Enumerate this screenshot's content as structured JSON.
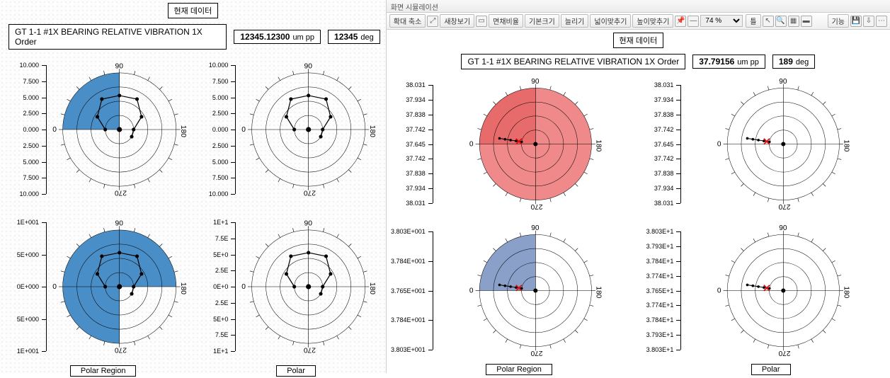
{
  "left": {
    "current_data_label": "현재 데이터",
    "title": "GT 1-1 #1X BEARING RELATIVE VIBRATION 1X Order",
    "amp_value": "12345.12300",
    "amp_unit": "um pp",
    "phase_value": "12345",
    "phase_unit": "deg",
    "captions": {
      "left": "Polar Region",
      "right": "Polar"
    },
    "polar": {
      "deg_labels": [
        "0",
        "90",
        "180",
        "270"
      ],
      "ring_count": 4,
      "tick_count": 24,
      "points_angles_deg": [
        180,
        150,
        120,
        90,
        60,
        30,
        0,
        330
      ],
      "points_radii": [
        0.25,
        0.45,
        0.62,
        0.6,
        0.62,
        0.45,
        0.25,
        0.25
      ],
      "line_color": "#000000",
      "point_color": "#000000",
      "top_left": {
        "region_fill": "#4a8ec8",
        "region_alpha": 0.85,
        "region_start_deg": 90,
        "region_end_deg": 180,
        "region_radius": 1.0,
        "y_ticks": [
          "10.000",
          "7.500",
          "5.000",
          "2.500",
          "0.000",
          "2.500",
          "5.000",
          "7.500",
          "10.000"
        ]
      },
      "top_right": {
        "region_fill": null,
        "y_ticks": [
          "10.000",
          "7.500",
          "5.000",
          "2.500",
          "0.000",
          "2.500",
          "5.000",
          "7.500",
          "10.000"
        ]
      },
      "bottom_left": {
        "region_fill": "#4a8ec8",
        "region_alpha": 0.85,
        "region_start_deg": 0,
        "region_end_deg": 270,
        "region_radius": 1.0,
        "y_ticks": [
          "1E+001",
          "5E+000",
          "0E+000",
          "5E+000",
          "1E+001"
        ]
      },
      "bottom_right": {
        "region_fill": null,
        "y_ticks": [
          "1E+1",
          "7.5E",
          "5E+0",
          "2.5E",
          "0E+0",
          "2.5E",
          "5E+0",
          "7.5E",
          "1E+1"
        ]
      }
    }
  },
  "right": {
    "tab_label": "화면 시뮬레이션",
    "toolbar": {
      "zoom_label": "확대 축소",
      "btns": [
        "새창보기",
        "면채비율",
        "기본크기",
        "늘리기",
        "넓이맞추기",
        "높이맞추기"
      ],
      "zoom_value": "74 %",
      "right_label": "틀",
      "func_label": "기능"
    },
    "current_data_label": "현재 데이터",
    "title": "GT 1-1 #1X BEARING RELATIVE VIBRATION 1X Order",
    "amp_value": "37.79156",
    "amp_unit": "um pp",
    "phase_value": "189",
    "phase_unit": "deg",
    "captions": {
      "left": "Polar Region",
      "right": "Polar"
    },
    "polar": {
      "deg_labels": [
        "0",
        "90",
        "180",
        "270"
      ],
      "ring_count": 4,
      "tick_count": 24,
      "trail_angle_deg": 189,
      "trail_radii": [
        0.25,
        0.35,
        0.45,
        0.55,
        0.65
      ],
      "cross_angle_deg": 189,
      "cross_radius": 0.3,
      "cross_color": "#e01010",
      "line_color": "#000000",
      "point_color": "#000000",
      "top_left": {
        "region_full_fill": "#f08a8a",
        "region_dark_fill": "#e86b6b",
        "region_dark_start_deg": 90,
        "region_dark_end_deg": 180,
        "y_ticks": [
          "38.031",
          "37.934",
          "37.838",
          "37.742",
          "37.645",
          "37.742",
          "37.838",
          "37.934",
          "38.031"
        ]
      },
      "top_right": {
        "region_full_fill": null,
        "y_ticks": [
          "38.031",
          "37.934",
          "37.838",
          "37.742",
          "37.645",
          "37.742",
          "37.838",
          "37.934",
          "38.031"
        ]
      },
      "bottom_left": {
        "region_full_fill": null,
        "region_dark_fill": "#8aa0c8",
        "region_dark_start_deg": 90,
        "region_dark_end_deg": 180,
        "y_ticks": [
          "3.803E+001",
          "3.784E+001",
          "3.765E+001",
          "3.784E+001",
          "3.803E+001"
        ]
      },
      "bottom_right": {
        "region_full_fill": null,
        "y_ticks": [
          "3.803E+1",
          "3.793E+1",
          "3.784E+1",
          "3.774E+1",
          "3.765E+1",
          "3.774E+1",
          "3.784E+1",
          "3.793E+1",
          "3.803E+1"
        ]
      }
    }
  },
  "style": {
    "axis_color": "#000000",
    "ring_color": "#000000",
    "grid_line_width": 0.6
  }
}
